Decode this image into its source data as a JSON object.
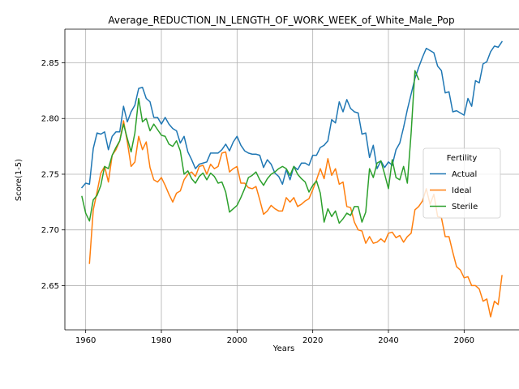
{
  "chart_data": {
    "type": "line",
    "title": "Average_REDUCTION_IN_LENGTH_OF_WORK_WEEK_of_White_Male_Pop",
    "xlabel": "Years",
    "ylabel": "Score(1-5)",
    "xlim": [
      1954.5,
      2074.5
    ],
    "ylim": [
      2.6103,
      2.8802
    ],
    "x_ticks": [
      1960,
      1980,
      2000,
      2020,
      2040,
      2060
    ],
    "y_ticks": [
      2.65,
      2.7,
      2.75,
      2.8,
      2.85
    ],
    "y_tick_labels": [
      "2.65",
      "2.70",
      "2.75",
      "2.80",
      "2.85"
    ],
    "grid": true,
    "legend": {
      "title": "Fertility",
      "placement": "center-right"
    },
    "series": [
      {
        "name": "Actual",
        "color": "#1f77b4",
        "x": [
          1959,
          1960,
          1961,
          1962,
          1963,
          1964,
          1965,
          1966,
          1967,
          1968,
          1969,
          1970,
          1971,
          1972,
          1973,
          1974,
          1975,
          1976,
          1977,
          1978,
          1979,
          1980,
          1981,
          1982,
          1983,
          1984,
          1985,
          1986,
          1987,
          1988,
          1989,
          1990,
          1991,
          1992,
          1993,
          1994,
          1995,
          1996,
          1997,
          1998,
          1999,
          2000,
          2001,
          2002,
          2003,
          2004,
          2005,
          2006,
          2007,
          2008,
          2009,
          2010,
          2011,
          2012,
          2013,
          2014,
          2015,
          2016,
          2017,
          2018,
          2019,
          2020,
          2021,
          2022,
          2023,
          2024,
          2025,
          2026,
          2027,
          2028,
          2029,
          2030,
          2031,
          2032,
          2033,
          2034,
          2035,
          2036,
          2037,
          2038,
          2039,
          2040,
          2041,
          2042,
          2043,
          2044,
          2045,
          2046,
          2047,
          2048,
          2049,
          2050,
          2051,
          2052,
          2053,
          2054,
          2055,
          2056,
          2057,
          2058,
          2059,
          2060,
          2061,
          2062,
          2063,
          2064,
          2065,
          2066,
          2067,
          2068,
          2069,
          2070
        ],
        "y": [
          2.738,
          2.742,
          2.741,
          2.773,
          2.787,
          2.786,
          2.788,
          2.772,
          2.784,
          2.788,
          2.788,
          2.811,
          2.797,
          2.806,
          2.812,
          2.827,
          2.828,
          2.818,
          2.815,
          2.801,
          2.801,
          2.795,
          2.801,
          2.795,
          2.791,
          2.789,
          2.778,
          2.784,
          2.77,
          2.763,
          2.755,
          2.759,
          2.76,
          2.761,
          2.769,
          2.769,
          2.769,
          2.772,
          2.777,
          2.771,
          2.779,
          2.784,
          2.776,
          2.771,
          2.769,
          2.768,
          2.768,
          2.767,
          2.756,
          2.763,
          2.759,
          2.751,
          2.748,
          2.741,
          2.754,
          2.745,
          2.757,
          2.754,
          2.76,
          2.76,
          2.758,
          2.767,
          2.767,
          2.774,
          2.776,
          2.78,
          2.799,
          2.796,
          2.815,
          2.806,
          2.817,
          2.809,
          2.806,
          2.805,
          2.786,
          2.787,
          2.765,
          2.776,
          2.755,
          2.762,
          2.756,
          2.761,
          2.758,
          2.772,
          2.778,
          2.792,
          2.808,
          2.822,
          2.836,
          2.846,
          2.855,
          2.863,
          2.861,
          2.859,
          2.847,
          2.843,
          2.823,
          2.824,
          2.806,
          2.807,
          2.805,
          2.803,
          2.818,
          2.811,
          2.834,
          2.832,
          2.849,
          2.851,
          2.86,
          2.865,
          2.864,
          2.869
        ]
      },
      {
        "name": "Ideal",
        "color": "#ff7f0e",
        "x": [
          1961,
          1962,
          1963,
          1964,
          1965,
          1966,
          1967,
          1968,
          1969,
          1970,
          1971,
          1972,
          1973,
          1974,
          1975,
          1976,
          1977,
          1978,
          1979,
          1980,
          1981,
          1982,
          1983,
          1984,
          1985,
          1986,
          1987,
          1988,
          1989,
          1990,
          1991,
          1992,
          1993,
          1994,
          1995,
          1996,
          1997,
          1998,
          1999,
          2000,
          2001,
          2002,
          2003,
          2004,
          2005,
          2006,
          2007,
          2008,
          2009,
          2010,
          2011,
          2012,
          2013,
          2014,
          2015,
          2016,
          2017,
          2018,
          2019,
          2020,
          2021,
          2022,
          2023,
          2024,
          2025,
          2026,
          2027,
          2028,
          2029,
          2030,
          2031,
          2032,
          2033,
          2034,
          2035,
          2036,
          2037,
          2038,
          2039,
          2040,
          2041,
          2042,
          2043,
          2044,
          2045,
          2046,
          2047,
          2048,
          2049,
          2050,
          2051,
          2052,
          2053,
          2054,
          2055,
          2056,
          2057,
          2058,
          2059,
          2060,
          2061,
          2062,
          2063,
          2064,
          2065,
          2066,
          2067,
          2068,
          2069,
          2070
        ],
        "y": [
          2.67,
          2.718,
          2.734,
          2.751,
          2.757,
          2.743,
          2.767,
          2.772,
          2.78,
          2.798,
          2.779,
          2.757,
          2.761,
          2.784,
          2.772,
          2.779,
          2.756,
          2.745,
          2.743,
          2.747,
          2.74,
          2.732,
          2.725,
          2.733,
          2.735,
          2.745,
          2.75,
          2.752,
          2.748,
          2.757,
          2.758,
          2.75,
          2.759,
          2.755,
          2.757,
          2.769,
          2.77,
          2.752,
          2.755,
          2.757,
          2.742,
          2.742,
          2.738,
          2.737,
          2.739,
          2.727,
          2.714,
          2.717,
          2.722,
          2.719,
          2.717,
          2.717,
          2.729,
          2.725,
          2.729,
          2.721,
          2.723,
          2.726,
          2.728,
          2.736,
          2.745,
          2.755,
          2.746,
          2.764,
          2.749,
          2.755,
          2.741,
          2.743,
          2.721,
          2.72,
          2.707,
          2.7,
          2.699,
          2.688,
          2.694,
          2.688,
          2.689,
          2.692,
          2.689,
          2.697,
          2.698,
          2.693,
          2.695,
          2.689,
          2.694,
          2.697,
          2.718,
          2.721,
          2.726,
          2.737,
          2.723,
          2.732,
          2.712,
          2.711,
          2.694,
          2.694,
          2.68,
          2.667,
          2.664,
          2.657,
          2.658,
          2.65,
          2.65,
          2.647,
          2.636,
          2.638,
          2.622,
          2.636,
          2.633,
          2.659
        ]
      },
      {
        "name": "Sterile",
        "color": "#2ca02c",
        "x": [
          1959,
          1960,
          1961,
          1962,
          1963,
          1964,
          1965,
          1966,
          1967,
          1968,
          1969,
          1970,
          1971,
          1972,
          1973,
          1974,
          1975,
          1976,
          1977,
          1978,
          1979,
          1980,
          1981,
          1982,
          1983,
          1984,
          1985,
          1986,
          1987,
          1988,
          1989,
          1990,
          1991,
          1992,
          1993,
          1994,
          1995,
          1996,
          1997,
          1998,
          1999,
          2000,
          2001,
          2002,
          2003,
          2004,
          2005,
          2006,
          2007,
          2008,
          2009,
          2010,
          2011,
          2012,
          2013,
          2014,
          2015,
          2016,
          2017,
          2018,
          2019,
          2020,
          2021,
          2022,
          2023,
          2024,
          2025,
          2026,
          2027,
          2028,
          2029,
          2030,
          2031,
          2032,
          2033,
          2034,
          2035,
          2036,
          2037,
          2038,
          2039,
          2040,
          2041,
          2042,
          2043,
          2044,
          2045,
          2046,
          2047,
          2048
        ],
        "y": [
          2.73,
          2.715,
          2.708,
          2.727,
          2.731,
          2.74,
          2.757,
          2.755,
          2.767,
          2.774,
          2.78,
          2.795,
          2.782,
          2.77,
          2.787,
          2.818,
          2.797,
          2.8,
          2.789,
          2.795,
          2.79,
          2.785,
          2.784,
          2.777,
          2.775,
          2.78,
          2.771,
          2.75,
          2.753,
          2.746,
          2.742,
          2.748,
          2.751,
          2.745,
          2.751,
          2.748,
          2.742,
          2.743,
          2.734,
          2.716,
          2.719,
          2.722,
          2.729,
          2.737,
          2.747,
          2.749,
          2.752,
          2.745,
          2.74,
          2.746,
          2.75,
          2.752,
          2.755,
          2.757,
          2.755,
          2.749,
          2.757,
          2.75,
          2.746,
          2.743,
          2.734,
          2.74,
          2.744,
          2.733,
          2.707,
          2.719,
          2.712,
          2.717,
          2.706,
          2.71,
          2.715,
          2.713,
          2.721,
          2.721,
          2.707,
          2.716,
          2.755,
          2.747,
          2.76,
          2.762,
          2.75,
          2.737,
          2.763,
          2.747,
          2.745,
          2.757,
          2.742,
          2.787,
          2.843,
          2.835
        ]
      }
    ]
  }
}
